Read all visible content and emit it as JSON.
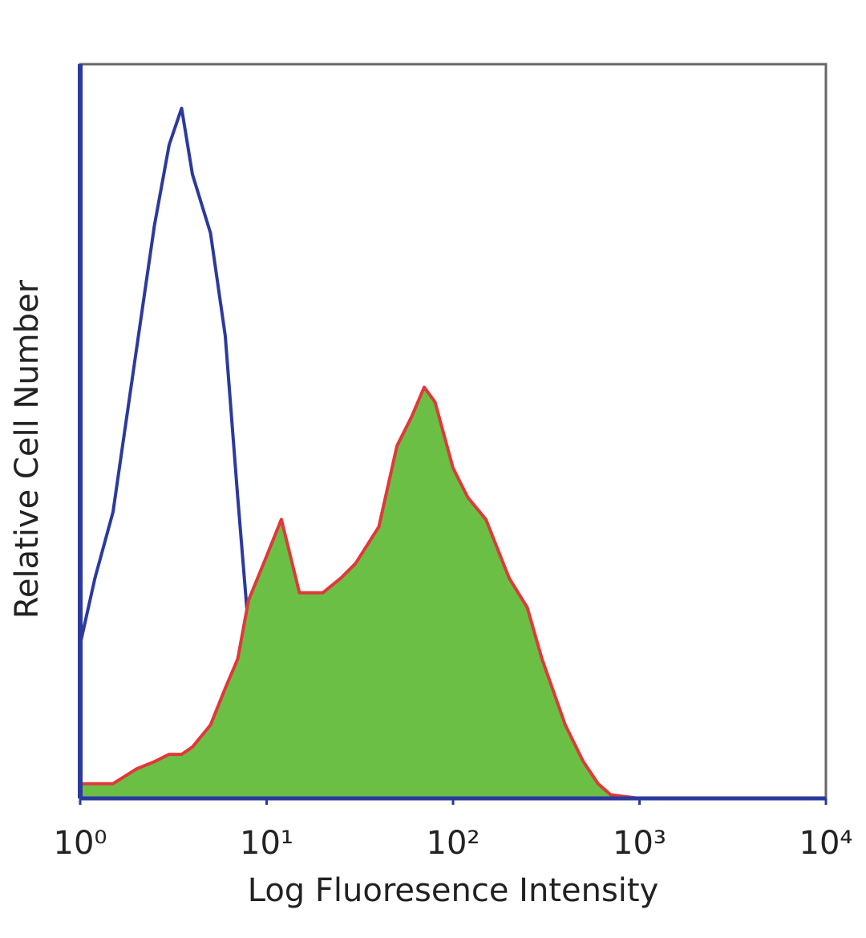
{
  "chart_data": {
    "type": "line",
    "x_label": "Log Fluoresence Intensity",
    "y_label": "Relative Cell Number",
    "xscale": "log",
    "xlim": [
      1,
      10000
    ],
    "ylim": [
      0,
      100
    ],
    "xticks": [
      {
        "value": 1,
        "label": "10⁰"
      },
      {
        "value": 10,
        "label": "10¹"
      },
      {
        "value": 100,
        "label": "10²"
      },
      {
        "value": 1000,
        "label": "10³"
      },
      {
        "value": 10000,
        "label": "10⁴"
      }
    ],
    "x": [
      1,
      1.2,
      1.5,
      2,
      2.5,
      3,
      3.5,
      4,
      5,
      6,
      7,
      8,
      10,
      12,
      15,
      20,
      25,
      30,
      40,
      50,
      60,
      70,
      80,
      100,
      120,
      150,
      200,
      250,
      300,
      400,
      500,
      600,
      700,
      1000,
      10000
    ],
    "series": [
      {
        "color": "#2b3a9c",
        "fill": false,
        "values": [
          21,
          30,
          39,
          61,
          78,
          89,
          94,
          85,
          77,
          63,
          41,
          23,
          14,
          6,
          3,
          1,
          0.5,
          0,
          0,
          0,
          0,
          0,
          0,
          0,
          0,
          0,
          0,
          0,
          0,
          0,
          0,
          0,
          0,
          0,
          0
        ]
      },
      {
        "color": "#e0393a",
        "fill": "#6cbf45",
        "values": [
          2,
          2,
          2,
          4,
          5,
          6,
          6,
          7,
          10,
          15,
          19,
          27,
          33,
          38,
          28,
          28,
          30,
          32,
          37,
          48,
          52,
          56,
          54,
          45,
          41,
          38,
          30,
          26,
          19,
          10,
          5,
          2,
          0.5,
          0,
          0
        ]
      }
    ]
  }
}
